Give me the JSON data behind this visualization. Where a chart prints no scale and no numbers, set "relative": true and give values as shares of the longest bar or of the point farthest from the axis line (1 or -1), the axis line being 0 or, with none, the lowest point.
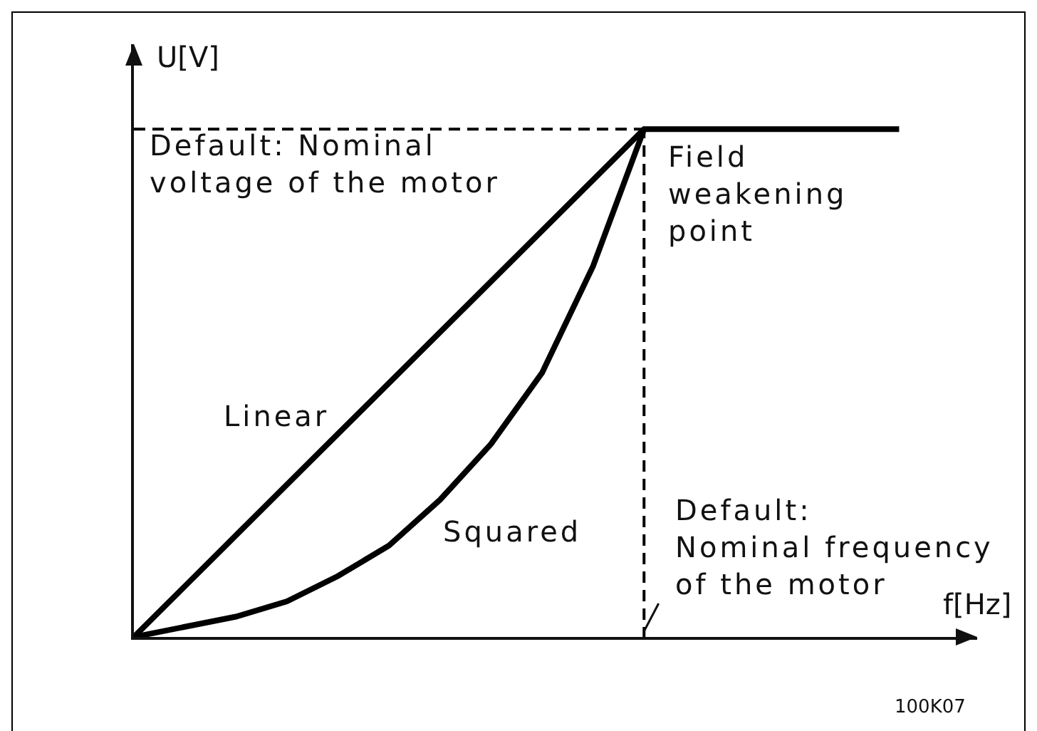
{
  "chart_data": {
    "type": "line",
    "relative": true,
    "xlabel": "f[Hz]",
    "ylabel": "U[V]",
    "line_style": "solid",
    "categories": [
      null,
      null,
      null,
      null,
      null,
      null,
      null,
      null,
      null,
      null,
      null,
      null,
      null,
      null,
      null,
      null
    ],
    "series": [
      {
        "name": "Linear",
        "color": "#000000",
        "values": [
          0,
          0.1,
          0.2,
          0.3,
          0.4,
          0.5,
          0.6,
          0.7,
          0.8,
          0.9,
          1,
          1,
          1,
          1,
          1,
          1
        ]
      },
      {
        "name": "Squared",
        "color": "#000000",
        "values": [
          0,
          0.02,
          0.04,
          0.07,
          0.12,
          0.18,
          0.27,
          0.38,
          0.52,
          0.73,
          1,
          null,
          null,
          null,
          null,
          null
        ]
      }
    ],
    "ref_lines": [
      {
        "axis": "y",
        "value": 1,
        "label": "Default: Nominal\nvoltage of the motor",
        "line_style": "dashed",
        "color": "#000000"
      }
    ],
    "annotations": [
      "Field\nweakening\npoint",
      "Default:\nNominal frequency\nof the motor",
      "100K07"
    ]
  }
}
